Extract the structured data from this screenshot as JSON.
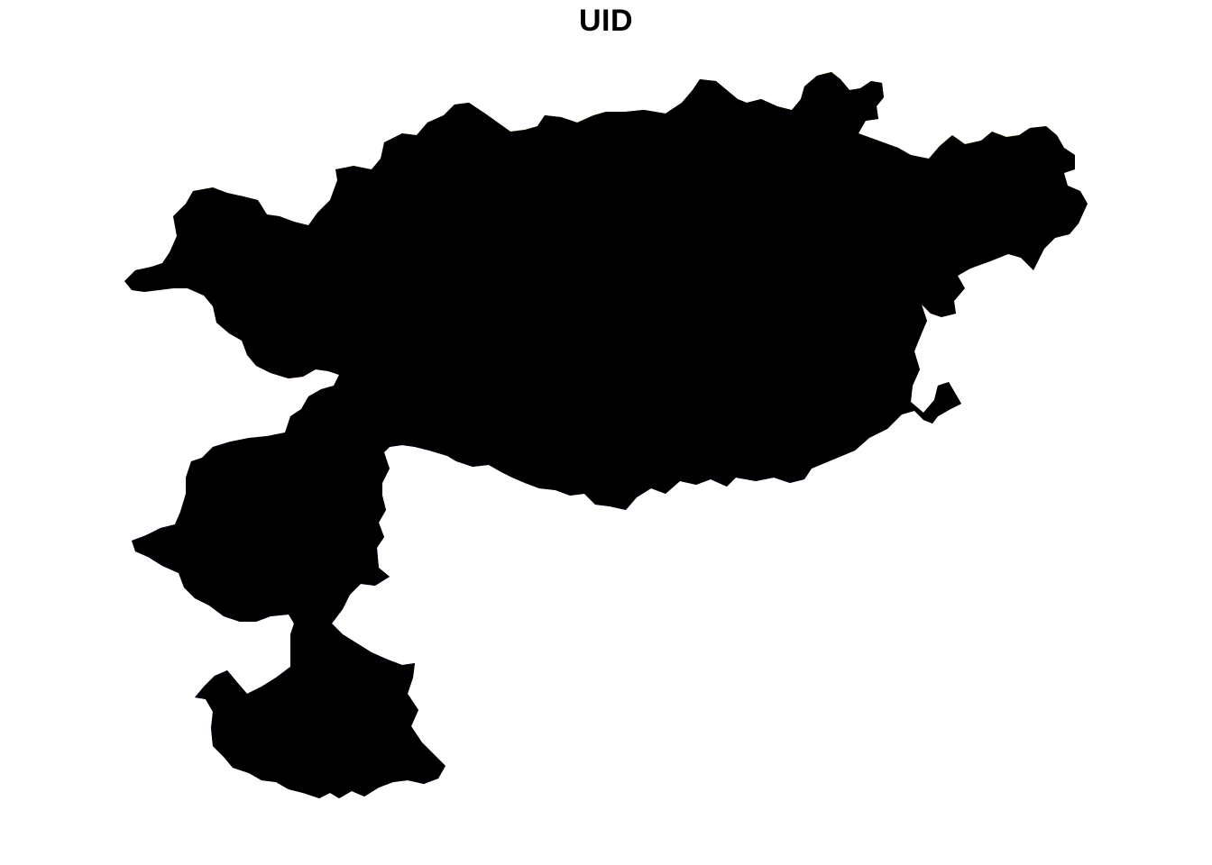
{
  "title": "UID",
  "map": {
    "fill_variable": "UID",
    "palette": [
      "#0000AA",
      "#0B0BFF",
      "#4C00FF",
      "#9A00FF",
      "#E23BD0",
      "#FF6A8A",
      "#FF9B64",
      "#FFC43A",
      "#FFF600"
    ],
    "border_color": "#000000",
    "background_color": "#FFFFFF"
  }
}
